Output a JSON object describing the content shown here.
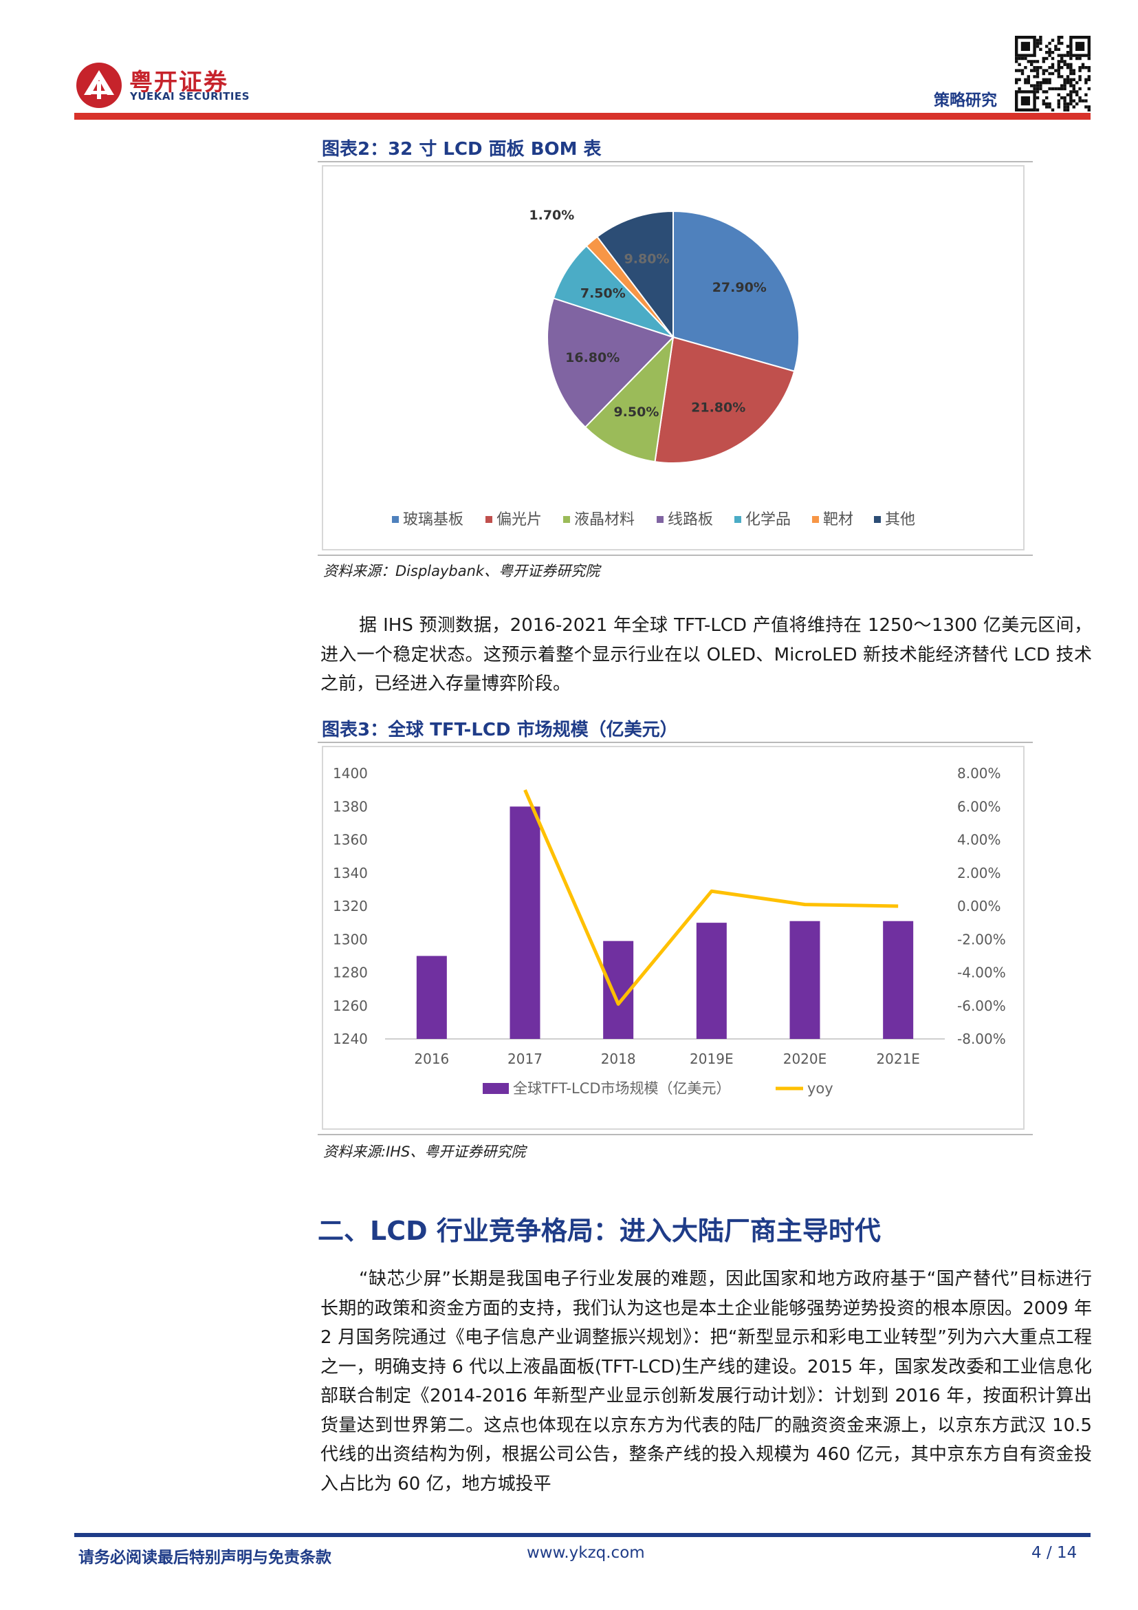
{
  "header": {
    "logo_cn": "粤开证券",
    "logo_en": "YUEKAI SECURITIES",
    "tag": "策略研究"
  },
  "figure2": {
    "caption": "图表2：32 寸 LCD 面板 BOM 表",
    "source": "资料来源：Displaybank、粤开证券研究院",
    "chart_data": {
      "type": "pie",
      "categories": [
        "玻璃基板",
        "偏光片",
        "液晶材料",
        "线路板",
        "化学品",
        "靶材",
        "其他"
      ],
      "values": [
        27.9,
        21.8,
        9.5,
        16.8,
        7.5,
        1.7,
        9.8
      ],
      "labels": [
        "27.90%",
        "21.80%",
        "9.50%",
        "16.80%",
        "7.50%",
        "1.70%",
        "9.80%"
      ],
      "colors": [
        "#4f81bd",
        "#c0504d",
        "#9bbb59",
        "#8064a2",
        "#4bacc6",
        "#f79646",
        "#2c4d75"
      ],
      "legend": "bottom"
    }
  },
  "paragraph1": "据 IHS 预测数据，2016-2021 年全球 TFT-LCD 产值将维持在 1250～1300 亿美元区间，进入一个稳定状态。这预示着整个显示行业在以 OLED、MicroLED 新技术能经济替代 LCD 技术之前，已经进入存量博弈阶段。",
  "figure3": {
    "caption": "图表3：全球 TFT-LCD 市场规模（亿美元）",
    "source": "资料来源:IHS、粤开证券研究院",
    "chart_data": {
      "type": "bar",
      "categories": [
        "2016",
        "2017",
        "2018",
        "2019E",
        "2020E",
        "2021E"
      ],
      "series": [
        {
          "name": "全球TFT-LCD市场规模（亿美元）",
          "type": "bar",
          "values": [
            1290,
            1380,
            1299,
            1310,
            1311,
            1311
          ],
          "color": "#7030a0",
          "axis": "left"
        },
        {
          "name": "yoy",
          "type": "line",
          "values": [
            null,
            7.0,
            -5.9,
            0.9,
            0.1,
            0.0
          ],
          "color": "#ffc000",
          "axis": "right"
        }
      ],
      "ylim_left": [
        1240,
        1400
      ],
      "yticks_left": [
        "1400",
        "1380",
        "1360",
        "1340",
        "1320",
        "1300",
        "1280",
        "1260",
        "1240"
      ],
      "ylim_right": [
        -8,
        8
      ],
      "yticks_right": [
        "8.00%",
        "6.00%",
        "4.00%",
        "2.00%",
        "0.00%",
        "-2.00%",
        "-4.00%",
        "-6.00%",
        "-8.00%"
      ],
      "legend": "bottom"
    }
  },
  "section_heading": "二、LCD 行业竞争格局：进入大陆厂商主导时代",
  "paragraph2": "“缺芯少屏”长期是我国电子行业发展的难题，因此国家和地方政府基于“国产替代”目标进行长期的政策和资金方面的支持，我们认为这也是本土企业能够强势逆势投资的根本原因。2009 年 2 月国务院通过《电子信息产业调整振兴规划》：把“新型显示和彩电工业转型”列为六大重点工程之一，明确支持 6 代以上液晶面板(TFT-LCD)生产线的建设。2015 年，国家发改委和工业信息化部联合制定《2014-2016 年新型产业显示创新发展行动计划》：计划到 2016 年，按面积计算出货量达到世界第二。这点也体现在以京东方为代表的陆厂的融资资金来源上，以京东方武汉 10.5 代线的出资结构为例，根据公司公告，整条产线的投入规模为 460 亿元，其中京东方自有资金投入占比为 60 亿，地方城投平",
  "footer": {
    "disclaimer": "请务必阅读最后特别声明与免责条款",
    "website": "www.ykzq.com",
    "page": "4 / 14"
  }
}
